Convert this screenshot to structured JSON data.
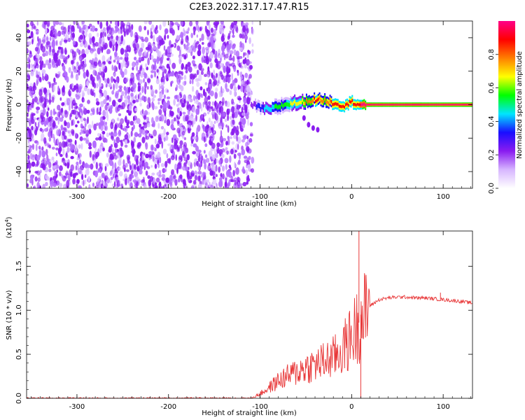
{
  "figure_title": "C2E3.2022.317.17.47.R15",
  "chart_data": [
    {
      "type": "heatmap",
      "xlabel": "Height of straight line (km)",
      "ylabel": "Frequency (Hz)",
      "xlim": [
        -355,
        132
      ],
      "ylim": [
        -50,
        50
      ],
      "x_ticks": [
        -300,
        -200,
        -100,
        0,
        100
      ],
      "y_ticks": [
        -40,
        -20,
        0,
        20,
        40
      ],
      "noise_region_x": [
        -355,
        -108
      ],
      "signal_track": [
        {
          "x": -110,
          "f": 0.0,
          "amp": 0.2
        },
        {
          "x": -100,
          "f": -2.0,
          "amp": 0.35
        },
        {
          "x": -90,
          "f": -3.0,
          "amp": 0.45
        },
        {
          "x": -80,
          "f": -1.0,
          "amp": 0.55
        },
        {
          "x": -70,
          "f": 0.5,
          "amp": 0.6
        },
        {
          "x": -60,
          "f": 1.0,
          "amp": 0.65
        },
        {
          "x": -50,
          "f": 2.0,
          "amp": 0.75
        },
        {
          "x": -40,
          "f": 3.0,
          "amp": 0.85
        },
        {
          "x": -30,
          "f": 2.5,
          "amp": 0.8
        },
        {
          "x": -20,
          "f": 1.0,
          "amp": 0.85
        },
        {
          "x": -10,
          "f": -0.5,
          "amp": 0.9
        },
        {
          "x": 0,
          "f": 1.5,
          "amp": 0.85
        },
        {
          "x": 10,
          "f": 0.0,
          "amp": 0.95
        },
        {
          "x": 50,
          "f": 0.0,
          "amp": 0.98
        },
        {
          "x": 100,
          "f": 0.0,
          "amp": 0.98
        },
        {
          "x": 132,
          "f": 0.0,
          "amp": 0.98
        }
      ],
      "colorbar": {
        "label": "Normalized spectral amplitude",
        "range": [
          0.0,
          1.0
        ],
        "ticks": [
          "0.0",
          "0.2",
          "0.4",
          "0.6",
          "0.8"
        ],
        "colors": [
          "#ffffff",
          "#d7b6ff",
          "#8a1cf0",
          "#1a0dff",
          "#00e5ff",
          "#00ff00",
          "#ffff00",
          "#ff7f00",
          "#ff0000",
          "#ff0088"
        ]
      }
    },
    {
      "type": "line",
      "xlabel": "Height of straight line (km)",
      "ylabel": "SNR (10 * v/v)",
      "exponent_label": "(x10",
      "exponent_power": "4",
      "exponent_close": ")",
      "xlim": [
        -355,
        132
      ],
      "ylim": [
        0,
        1.9
      ],
      "x_ticks": [
        -300,
        -200,
        -100,
        0,
        100
      ],
      "y_ticks": [
        "0.0",
        "0.5",
        "1.0",
        "1.5"
      ],
      "series": [
        {
          "color": "#e8393a",
          "x": [
            -355,
            -300,
            -250,
            -200,
            -150,
            -110,
            -100,
            -90,
            -80,
            -70,
            -60,
            -50,
            -40,
            -30,
            -20,
            -10,
            0,
            5,
            10,
            15,
            20,
            30,
            40,
            50,
            60,
            70,
            80,
            90,
            100,
            110,
            120,
            132
          ],
          "y": [
            0.0,
            0.0,
            0.0,
            0.0,
            0.0,
            0.0,
            0.05,
            0.12,
            0.2,
            0.25,
            0.3,
            0.35,
            0.38,
            0.42,
            0.46,
            0.55,
            0.7,
            0.8,
            0.9,
            0.95,
            1.05,
            1.12,
            1.14,
            1.15,
            1.15,
            1.14,
            1.14,
            1.13,
            1.12,
            1.11,
            1.1,
            1.08
          ]
        }
      ],
      "spikes": [
        {
          "x": 8,
          "y": 1.9
        },
        {
          "x": 97,
          "y": 1.2
        }
      ]
    }
  ]
}
